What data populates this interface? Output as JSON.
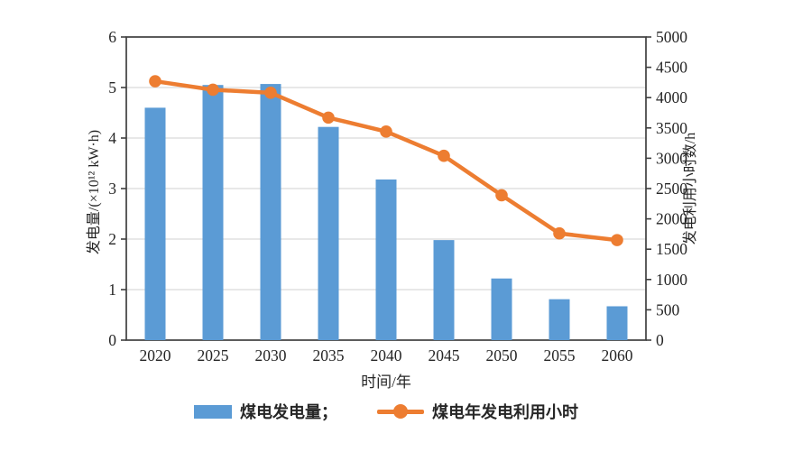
{
  "colors": {
    "bar": "#5b9bd5",
    "line": "#ed7d31",
    "axis": "#3f3f3f",
    "grid": "#d9d9d9",
    "text": "#262626"
  },
  "chart_data": {
    "type": "combo",
    "title": "",
    "categories": [
      "2020",
      "2025",
      "2030",
      "2035",
      "2040",
      "2045",
      "2050",
      "2055",
      "2060"
    ],
    "series": [
      {
        "name": "煤电发电量",
        "type": "bar",
        "axis": "left",
        "values": [
          4.6,
          5.05,
          5.07,
          4.22,
          3.18,
          1.98,
          1.22,
          0.81,
          0.67
        ]
      },
      {
        "name": "煤电年发电利用小时",
        "type": "line",
        "axis": "right",
        "values": [
          4270,
          4130,
          4080,
          3670,
          3440,
          3040,
          2390,
          1760,
          1650
        ]
      }
    ],
    "xlabel": "时间/年",
    "ylabel_left": "发电量/(×10¹² kW·h)",
    "ylabel_right": "发电利用小时数/h",
    "y_left": {
      "min": 0,
      "max": 6,
      "step": 1
    },
    "y_right": {
      "min": 0,
      "max": 5000,
      "step": 500
    },
    "grid": "horizontal",
    "legend_position": "bottom"
  },
  "legend": {
    "bar_label": "煤电发电量；",
    "line_label": "煤电年发电利用小时"
  }
}
